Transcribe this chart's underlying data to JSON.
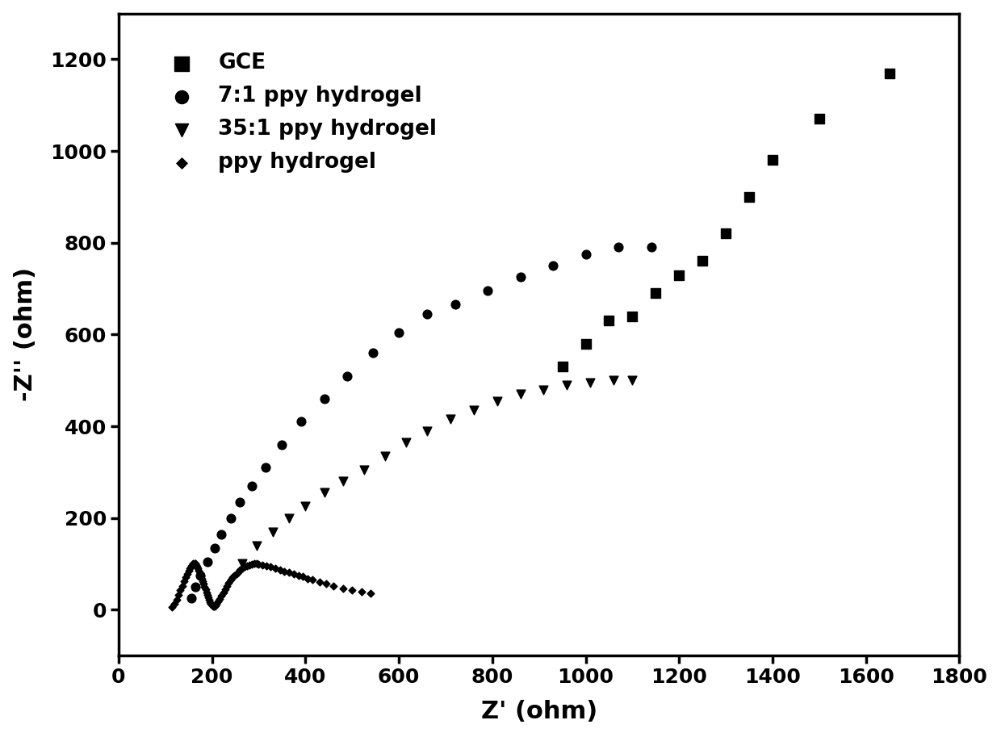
{
  "title": "",
  "xlabel": "Z' (ohm)",
  "ylabel": "-Z'' (ohm)",
  "xlim": [
    0,
    1800
  ],
  "ylim": [
    -100,
    1300
  ],
  "xticks": [
    0,
    200,
    400,
    600,
    800,
    1000,
    1200,
    1400,
    1600,
    1800
  ],
  "yticks": [
    0,
    200,
    400,
    600,
    800,
    1000,
    1200
  ],
  "background_color": "#ffffff",
  "legend_entries": [
    "GCE",
    "7:1 ppy hydrogel",
    "35:1 ppy hydrogel",
    "ppy hydrogel"
  ],
  "legend_markers": [
    "s",
    "o",
    "v",
    "D"
  ],
  "GCE_x": [
    950,
    1000,
    1050,
    1100,
    1150,
    1200,
    1250,
    1300,
    1350,
    1400,
    1500,
    1650
  ],
  "GCE_y": [
    530,
    580,
    630,
    640,
    690,
    730,
    760,
    820,
    900,
    980,
    1070,
    1170
  ],
  "hydrogel71_x": [
    155,
    165,
    175,
    190,
    205,
    220,
    240,
    260,
    285,
    315,
    350,
    390,
    440,
    490,
    545,
    600,
    660,
    720,
    790,
    860,
    930,
    1000,
    1070,
    1140
  ],
  "hydrogel71_y": [
    25,
    50,
    75,
    105,
    135,
    165,
    200,
    235,
    270,
    310,
    360,
    410,
    460,
    510,
    560,
    605,
    645,
    665,
    695,
    725,
    750,
    775,
    790,
    790
  ],
  "hydrogel351_x": [
    265,
    295,
    330,
    365,
    400,
    440,
    480,
    525,
    570,
    615,
    660,
    710,
    760,
    810,
    860,
    910,
    960,
    1010,
    1060,
    1100
  ],
  "hydrogel351_y": [
    100,
    140,
    170,
    200,
    225,
    255,
    280,
    305,
    335,
    365,
    390,
    415,
    435,
    455,
    470,
    480,
    490,
    495,
    500,
    500
  ],
  "ppy_hydrogel_x": [
    115,
    120,
    125,
    128,
    132,
    136,
    140,
    143,
    147,
    150,
    153,
    156,
    158,
    160,
    162,
    164,
    166,
    168,
    170,
    172,
    174,
    176,
    178,
    180,
    182,
    184,
    186,
    188,
    190,
    192,
    194,
    196,
    198,
    200,
    202,
    204,
    206,
    208,
    210,
    213,
    216,
    220,
    224,
    228,
    232,
    236,
    240,
    244,
    248,
    252,
    256,
    260,
    265,
    270,
    275,
    280,
    285,
    290,
    295,
    300,
    308,
    316,
    325,
    335,
    345,
    355,
    365,
    375,
    385,
    395,
    405,
    415,
    430,
    445,
    460,
    480,
    500,
    520,
    540
  ],
  "ppy_hydrogel_y": [
    5,
    12,
    22,
    32,
    42,
    52,
    62,
    70,
    78,
    85,
    90,
    95,
    98,
    100,
    101,
    100,
    98,
    94,
    90,
    85,
    80,
    74,
    68,
    62,
    56,
    50,
    44,
    38,
    32,
    26,
    21,
    17,
    13,
    10,
    8,
    7,
    8,
    10,
    13,
    18,
    24,
    30,
    37,
    44,
    51,
    58,
    65,
    70,
    74,
    78,
    82,
    86,
    90,
    93,
    96,
    98,
    99,
    100,
    100,
    99,
    97,
    95,
    93,
    90,
    87,
    84,
    81,
    78,
    75,
    72,
    68,
    65,
    60,
    56,
    52,
    47,
    43,
    39,
    35
  ]
}
